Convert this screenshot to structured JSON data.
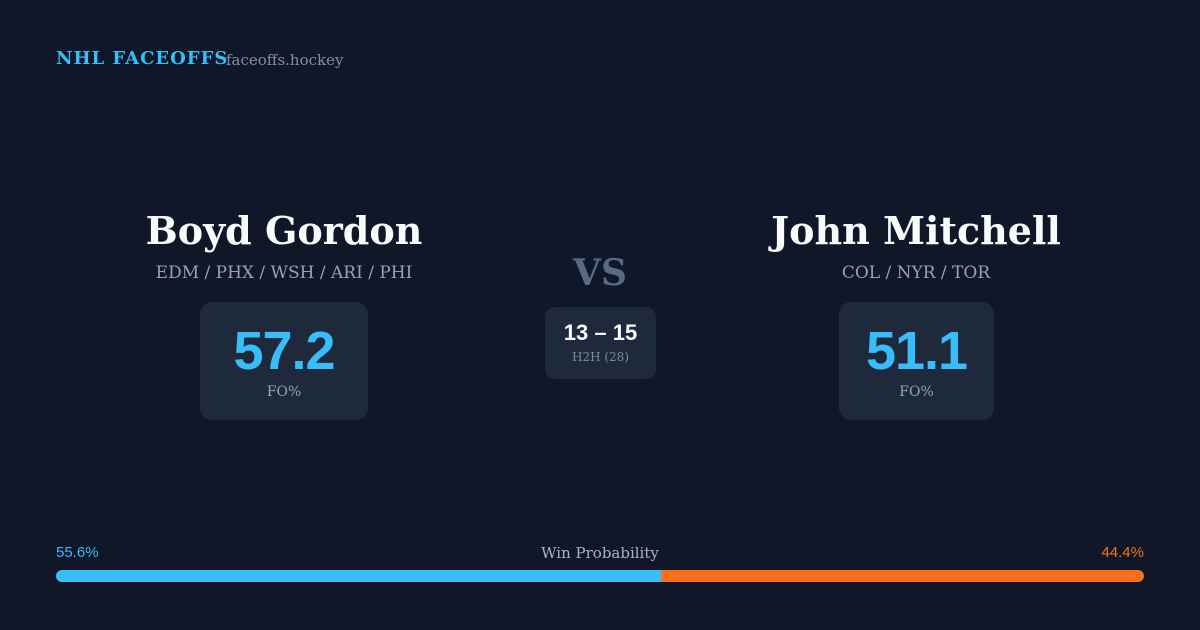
{
  "header": {
    "title": "NHL FACEOFFS",
    "site": "faceoffs.hockey"
  },
  "left_player": {
    "name": "Boyd Gordon",
    "teams": "EDM / PHX / WSH / ARI / PHI",
    "stat": "57.2",
    "stat_label": "FO%"
  },
  "versus": {
    "label": "VS",
    "score": "13 – 15",
    "score_label": "H2H (28)"
  },
  "right_player": {
    "name": "John Mitchell",
    "teams": "COL / NYR / TOR",
    "stat": "51.1",
    "stat_label": "FO%"
  },
  "win_probability": {
    "label": "Win Probability",
    "left": {
      "value": 55.6,
      "label": "55.6%",
      "color": "#38bdf8"
    },
    "right": {
      "value": 44.4,
      "label": "44.4%",
      "color": "#f97316"
    }
  }
}
